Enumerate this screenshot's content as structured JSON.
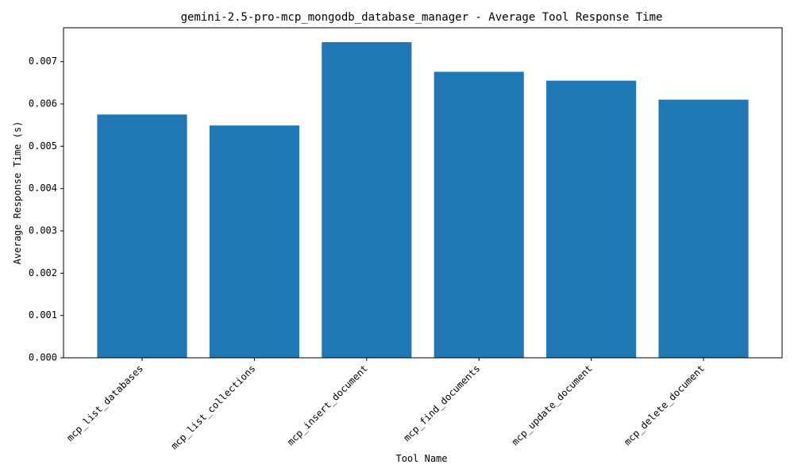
{
  "chart_data": {
    "type": "bar",
    "title": "gemini-2.5-pro-mcp_mongodb_database_manager - Average Tool Response Time",
    "xlabel": "Tool Name",
    "ylabel": "Average Response Time (s)",
    "categories": [
      "mcp_list_databases",
      "mcp_list_collections",
      "mcp_insert_document",
      "mcp_find_documents",
      "mcp_update_document",
      "mcp_delete_document"
    ],
    "values": [
      0.00575,
      0.00549,
      0.00746,
      0.00676,
      0.00655,
      0.0061
    ],
    "ylim": [
      0,
      0.0078
    ],
    "yticks": [
      "0.000",
      "0.001",
      "0.002",
      "0.003",
      "0.004",
      "0.005",
      "0.006",
      "0.007"
    ],
    "bar_color": "#1f77b4",
    "grid": false
  }
}
